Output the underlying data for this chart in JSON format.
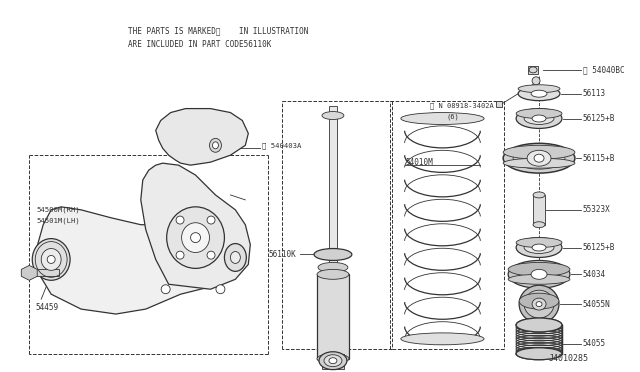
{
  "bg_color": "#ffffff",
  "line_color": "#333333",
  "title_line1": "THE PARTS IS MARKED※    IN ILLUSTRATION",
  "title_line2": "ARE INCLUDED IN PART CODE56110K",
  "diagram_id": "J4010285",
  "figsize": [
    6.4,
    3.72
  ],
  "dpi": 100
}
